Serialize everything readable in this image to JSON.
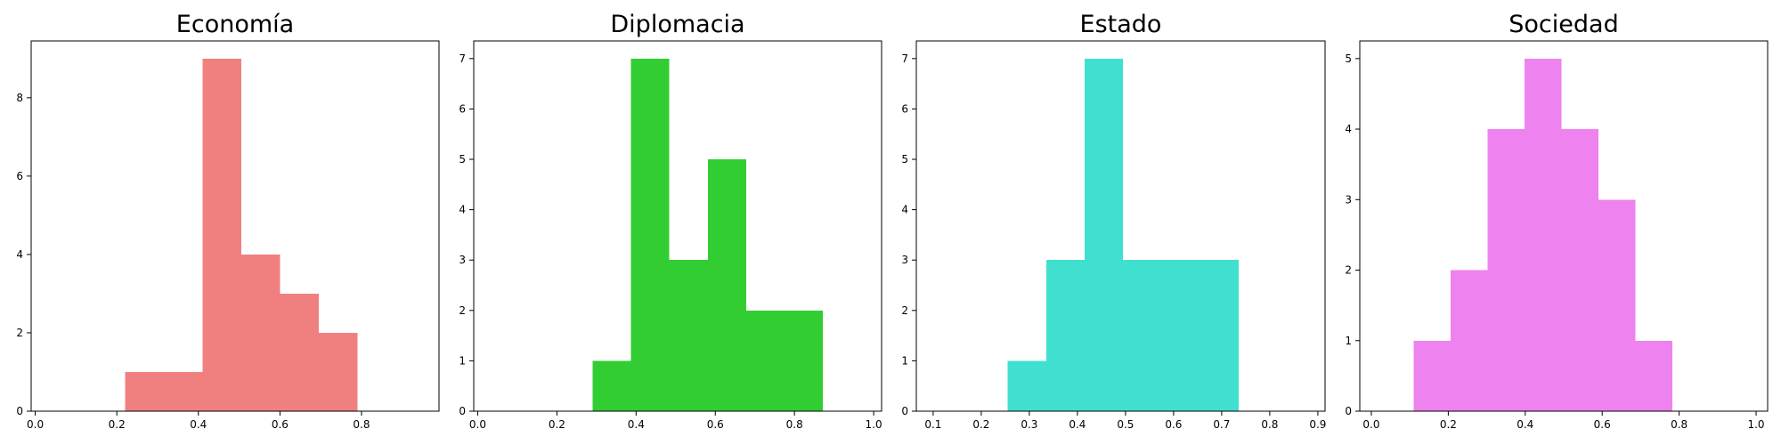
{
  "chart_data": [
    {
      "type": "bar",
      "title": "Economía",
      "color": "#f08080",
      "xlim": [
        -0.01,
        0.99
      ],
      "ylim": [
        0,
        9.45
      ],
      "xticks": [
        0.0,
        0.2,
        0.4,
        0.6,
        0.8
      ],
      "xtick_labels": [
        "0.0",
        "0.2",
        "0.4",
        "0.6",
        "0.8"
      ],
      "yticks": [
        0,
        2,
        4,
        6,
        8
      ],
      "ytick_labels": [
        "0",
        "2",
        "4",
        "6",
        "8"
      ],
      "bins": [
        {
          "x0": 0.22,
          "x1": 0.315,
          "value": 1
        },
        {
          "x0": 0.315,
          "x1": 0.41,
          "value": 1
        },
        {
          "x0": 0.41,
          "x1": 0.505,
          "value": 9
        },
        {
          "x0": 0.505,
          "x1": 0.6,
          "value": 4
        },
        {
          "x0": 0.6,
          "x1": 0.695,
          "value": 3
        },
        {
          "x0": 0.695,
          "x1": 0.79,
          "value": 2
        }
      ]
    },
    {
      "type": "bar",
      "title": "Diplomacia",
      "color": "#32cd32",
      "xlim": [
        -0.01,
        1.02
      ],
      "ylim": [
        0,
        7.35
      ],
      "xticks": [
        0.0,
        0.2,
        0.4,
        0.6,
        0.8,
        1.0
      ],
      "xtick_labels": [
        "0.0",
        "0.2",
        "0.4",
        "0.6",
        "0.8",
        "1.0"
      ],
      "yticks": [
        0,
        1,
        2,
        3,
        4,
        5,
        6,
        7
      ],
      "ytick_labels": [
        "0",
        "1",
        "2",
        "3",
        "4",
        "5",
        "6",
        "7"
      ],
      "bins": [
        {
          "x0": 0.29,
          "x1": 0.387,
          "value": 1
        },
        {
          "x0": 0.387,
          "x1": 0.484,
          "value": 7
        },
        {
          "x0": 0.484,
          "x1": 0.581,
          "value": 3
        },
        {
          "x0": 0.581,
          "x1": 0.678,
          "value": 5
        },
        {
          "x0": 0.678,
          "x1": 0.775,
          "value": 2
        },
        {
          "x0": 0.775,
          "x1": 0.872,
          "value": 2
        }
      ]
    },
    {
      "type": "bar",
      "title": "Estado",
      "color": "#40e0d0",
      "xlim": [
        0.065,
        0.915
      ],
      "ylim": [
        0,
        7.35
      ],
      "xticks": [
        0.1,
        0.2,
        0.3,
        0.4,
        0.5,
        0.6,
        0.7,
        0.8,
        0.9
      ],
      "xtick_labels": [
        "0.1",
        "0.2",
        "0.3",
        "0.4",
        "0.5",
        "0.6",
        "0.7",
        "0.8",
        "0.9"
      ],
      "yticks": [
        0,
        1,
        2,
        3,
        4,
        5,
        6,
        7
      ],
      "ytick_labels": [
        "0",
        "1",
        "2",
        "3",
        "4",
        "5",
        "6",
        "7"
      ],
      "bins": [
        {
          "x0": 0.255,
          "x1": 0.335,
          "value": 1
        },
        {
          "x0": 0.335,
          "x1": 0.415,
          "value": 3
        },
        {
          "x0": 0.415,
          "x1": 0.495,
          "value": 7
        },
        {
          "x0": 0.495,
          "x1": 0.575,
          "value": 3
        },
        {
          "x0": 0.575,
          "x1": 0.655,
          "value": 3
        },
        {
          "x0": 0.655,
          "x1": 0.735,
          "value": 3
        }
      ]
    },
    {
      "type": "bar",
      "title": "Sociedad",
      "color": "#ee82ee",
      "xlim": [
        -0.03,
        1.03
      ],
      "ylim": [
        0,
        5.25
      ],
      "xticks": [
        0.0,
        0.2,
        0.4,
        0.6,
        0.8,
        1.0
      ],
      "xtick_labels": [
        "0.0",
        "0.2",
        "0.4",
        "0.6",
        "0.8",
        "1.0"
      ],
      "yticks": [
        0,
        1,
        2,
        3,
        4,
        5
      ],
      "ytick_labels": [
        "0",
        "1",
        "2",
        "3",
        "4",
        "5"
      ],
      "bins": [
        {
          "x0": 0.11,
          "x1": 0.206,
          "value": 1
        },
        {
          "x0": 0.206,
          "x1": 0.302,
          "value": 2
        },
        {
          "x0": 0.302,
          "x1": 0.398,
          "value": 4
        },
        {
          "x0": 0.398,
          "x1": 0.494,
          "value": 5
        },
        {
          "x0": 0.494,
          "x1": 0.59,
          "value": 4
        },
        {
          "x0": 0.59,
          "x1": 0.686,
          "value": 3
        },
        {
          "x0": 0.686,
          "x1": 0.782,
          "value": 1
        }
      ]
    }
  ]
}
